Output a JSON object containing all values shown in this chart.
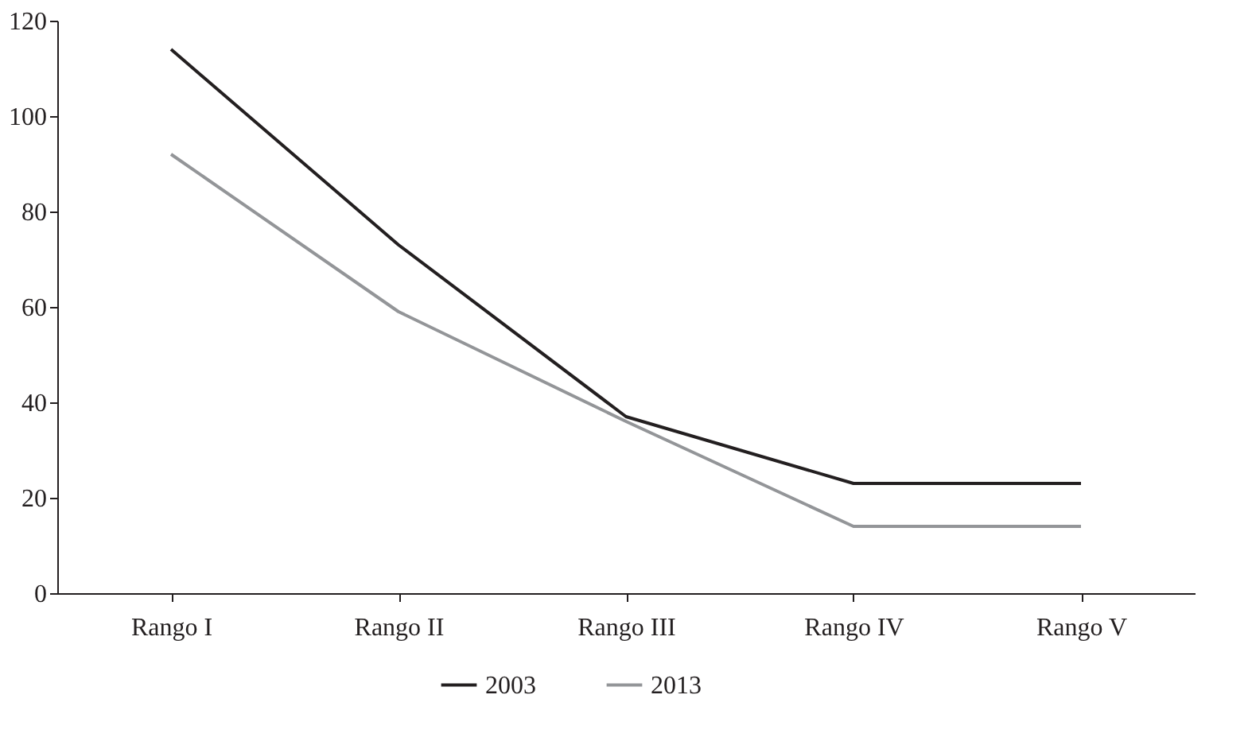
{
  "chart_data": {
    "type": "line",
    "categories": [
      "Rango I",
      "Rango II",
      "Rango III",
      "Rango IV",
      "Rango V"
    ],
    "series": [
      {
        "name": "2003",
        "color": "#231f20",
        "values": [
          114,
          73,
          37,
          23,
          23
        ]
      },
      {
        "name": "2013",
        "color": "#939598",
        "values": [
          92,
          59,
          36,
          14,
          14
        ]
      }
    ],
    "ylim": [
      0,
      120
    ],
    "yticks": [
      0,
      20,
      40,
      60,
      80,
      100,
      120
    ],
    "grid": false,
    "legend": "bottom",
    "marker": "none",
    "line_style": "solid"
  }
}
